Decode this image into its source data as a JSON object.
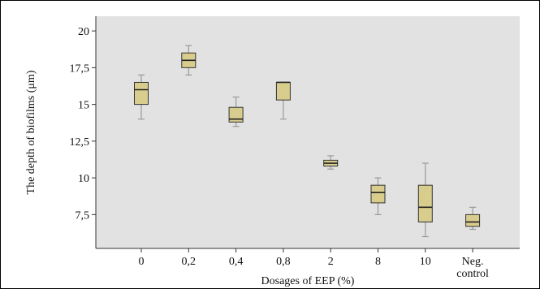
{
  "chart_data": {
    "type": "box",
    "xlabel": "Dosages of EEP (%)",
    "ylabel": "The depth of biofilms (μm)",
    "ylim": [
      5.2,
      21.0
    ],
    "yticks": [
      7.5,
      10,
      12.5,
      15,
      17.5,
      20
    ],
    "ytick_labels": [
      "7,5",
      "10",
      "12,5",
      "15",
      "17,5",
      "20"
    ],
    "categories": [
      "0",
      "0,2",
      "0,4",
      "0,8",
      "2",
      "8",
      "10",
      "Neg. control"
    ],
    "category_lines": [
      [
        "0"
      ],
      [
        "0,2"
      ],
      [
        "0,4"
      ],
      [
        "0,8"
      ],
      [
        "2"
      ],
      [
        "8"
      ],
      [
        "10"
      ],
      [
        "Neg.",
        "control"
      ]
    ],
    "boxes": [
      {
        "min": 14.0,
        "q1": 15.0,
        "median": 16.0,
        "q3": 16.5,
        "max": 17.0
      },
      {
        "min": 17.0,
        "q1": 17.5,
        "median": 18.0,
        "q3": 18.5,
        "max": 19.0
      },
      {
        "min": 13.5,
        "q1": 13.8,
        "median": 14.0,
        "q3": 14.8,
        "max": 15.5
      },
      {
        "min": 14.0,
        "q1": 15.3,
        "median": 16.5,
        "q3": 16.5,
        "max": 16.5
      },
      {
        "min": 10.6,
        "q1": 10.8,
        "median": 11.0,
        "q3": 11.2,
        "max": 11.5
      },
      {
        "min": 7.5,
        "q1": 8.3,
        "median": 9.0,
        "q3": 9.5,
        "max": 10.0
      },
      {
        "min": 6.0,
        "q1": 7.0,
        "median": 8.0,
        "q3": 9.5,
        "max": 11.0
      },
      {
        "min": 6.5,
        "q1": 6.7,
        "median": 7.0,
        "q3": 7.5,
        "max": 8.0
      }
    ],
    "grid": false,
    "legend": "none",
    "colors": {
      "box_fill": "#d9cd8e",
      "box_stroke": "#333333",
      "whisker": "#9a9a9a",
      "plot_bg": "#e2e2e2"
    }
  }
}
